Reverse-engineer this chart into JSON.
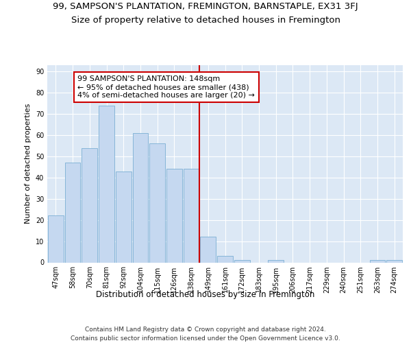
{
  "title": "99, SAMPSON'S PLANTATION, FREMINGTON, BARNSTAPLE, EX31 3FJ",
  "subtitle": "Size of property relative to detached houses in Fremington",
  "xlabel": "Distribution of detached houses by size in Fremington",
  "ylabel": "Number of detached properties",
  "categories": [
    "47sqm",
    "58sqm",
    "70sqm",
    "81sqm",
    "92sqm",
    "104sqm",
    "115sqm",
    "126sqm",
    "138sqm",
    "149sqm",
    "161sqm",
    "172sqm",
    "183sqm",
    "195sqm",
    "206sqm",
    "217sqm",
    "229sqm",
    "240sqm",
    "251sqm",
    "263sqm",
    "274sqm"
  ],
  "values": [
    22,
    47,
    54,
    74,
    43,
    61,
    56,
    44,
    44,
    12,
    3,
    1,
    0,
    1,
    0,
    0,
    0,
    0,
    0,
    1,
    1
  ],
  "bar_color": "#c5d8f0",
  "bar_edge_color": "#7bafd4",
  "vline_color": "#cc0000",
  "annotation_text": "99 SAMPSON'S PLANTATION: 148sqm\n← 95% of detached houses are smaller (438)\n4% of semi-detached houses are larger (20) →",
  "annotation_box_color": "#ffffff",
  "annotation_box_edge": "#cc0000",
  "ylim": [
    0,
    93
  ],
  "yticks": [
    0,
    10,
    20,
    30,
    40,
    50,
    60,
    70,
    80,
    90
  ],
  "background_color": "#dce8f5",
  "footer_text": "Contains HM Land Registry data © Crown copyright and database right 2024.\nContains public sector information licensed under the Open Government Licence v3.0.",
  "title_fontsize": 9.5,
  "subtitle_fontsize": 9.5,
  "xlabel_fontsize": 8.5,
  "ylabel_fontsize": 8,
  "tick_fontsize": 7,
  "annotation_fontsize": 8,
  "footer_fontsize": 6.5
}
